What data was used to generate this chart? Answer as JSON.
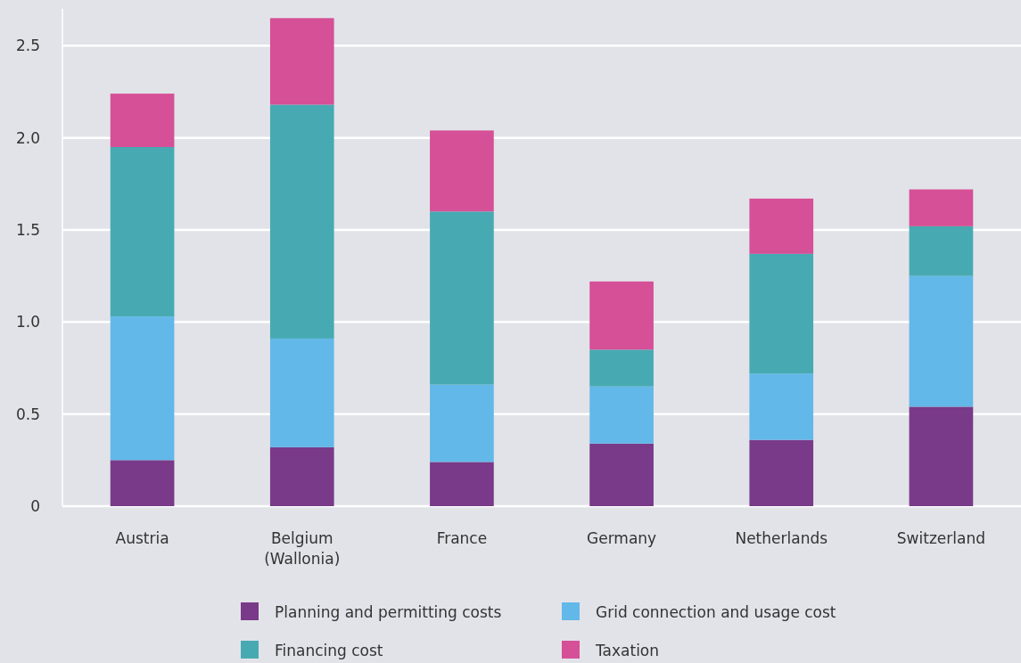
{
  "chart_data": {
    "type": "bar",
    "stacked": true,
    "categories": [
      "Austria",
      "Belgium (Wallonia)",
      "France",
      "Germany",
      "Netherlands",
      "Switzerland"
    ],
    "series": [
      {
        "name": "Planning and permitting costs",
        "color": "#793a89",
        "values": [
          0.25,
          0.32,
          0.24,
          0.34,
          0.36,
          0.54
        ]
      },
      {
        "name": "Grid connection and usage cost",
        "color": "#62b8e8",
        "values": [
          0.78,
          0.59,
          0.42,
          0.31,
          0.36,
          0.71
        ]
      },
      {
        "name": "Financing cost",
        "color": "#47aab2",
        "values": [
          0.92,
          1.27,
          0.94,
          0.2,
          0.65,
          0.27
        ]
      },
      {
        "name": "Taxation",
        "color": "#d55096",
        "values": [
          0.29,
          0.47,
          0.44,
          0.37,
          0.3,
          0.2
        ]
      }
    ],
    "ylim": [
      0,
      2.7
    ],
    "yticks": [
      0,
      {
        "value": 0.5,
        "label": "0.5"
      },
      {
        "value": 1,
        "label": "1.0"
      },
      {
        "value": 1.5,
        "label": "1.5"
      },
      {
        "value": 2,
        "label": "2.0"
      },
      {
        "value": 2.5,
        "label": "2.5"
      }
    ],
    "grid": "y",
    "legend": "bottom"
  }
}
